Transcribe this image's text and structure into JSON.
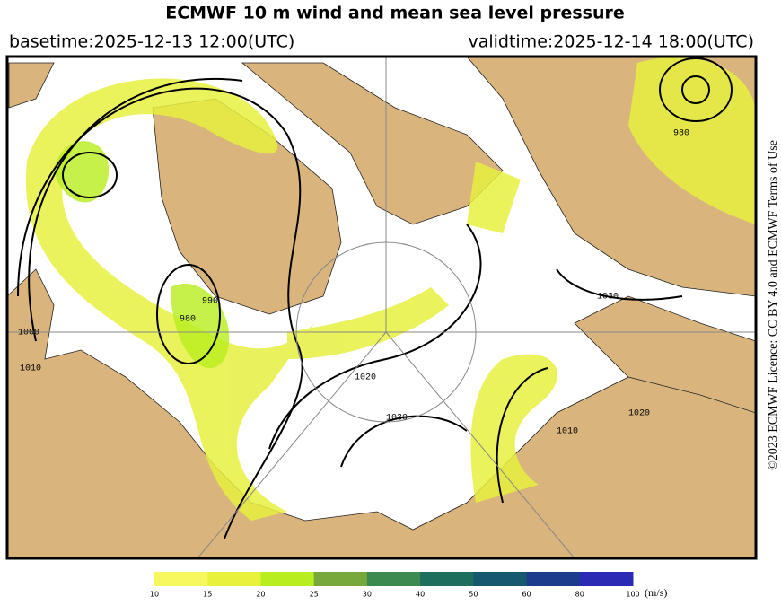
{
  "header": {
    "title": "ECMWF 10 m wind and mean sea level pressure",
    "basetime": "basetime:2025-12-13 12:00(UTC)",
    "validtime": "validtime:2025-12-14 18:00(UTC)"
  },
  "license": "©2023 ECMWF Licence: CC BY 4.0 and ECMWF Terms of Use",
  "contour_labels": [
    "1020",
    "1030",
    "1010",
    "1020",
    "980",
    "990",
    "1000",
    "1010",
    "1030",
    "980"
  ],
  "colorbar": {
    "labels": [
      10,
      15,
      20,
      25,
      30,
      40,
      50,
      60,
      80,
      100
    ],
    "colors": [
      "#f7f760",
      "#e8f23c",
      "#b8ee1e",
      "#78a83c",
      "#3c8a50",
      "#1e6e5e",
      "#16586e",
      "#1e3c8c",
      "#2a2ab4"
    ],
    "unit": "(m/s)"
  }
}
